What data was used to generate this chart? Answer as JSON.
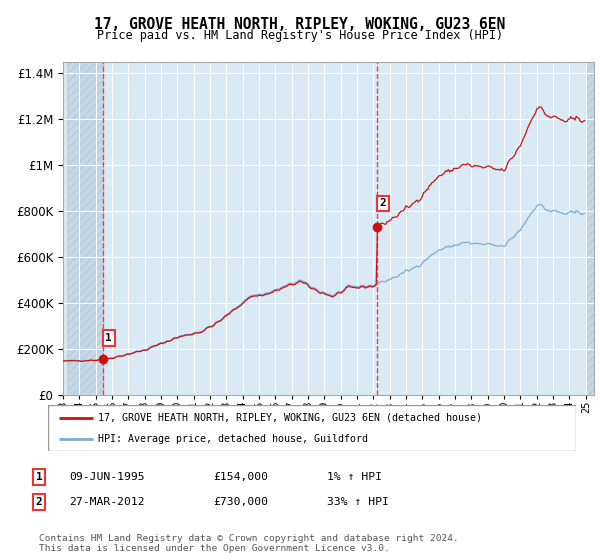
{
  "title": "17, GROVE HEATH NORTH, RIPLEY, WOKING, GU23 6EN",
  "subtitle": "Price paid vs. HM Land Registry's House Price Index (HPI)",
  "sale1_price": 154000,
  "sale1_label": "09-JUN-1995",
  "sale1_pct": "1%",
  "sale2_price": 730000,
  "sale2_label": "27-MAR-2012",
  "sale2_pct": "33%",
  "legend_line1": "17, GROVE HEATH NORTH, RIPLEY, WOKING, GU23 6EN (detached house)",
  "legend_line2": "HPI: Average price, detached house, Guildford",
  "footer": "Contains HM Land Registry data © Crown copyright and database right 2024.\nThis data is licensed under the Open Government Licence v3.0.",
  "hpi_color": "#7aadd4",
  "price_color": "#cc1111",
  "dashed_color": "#ee3333",
  "bg_color": "#daeaf5",
  "hatch_color": "#c5d8e8",
  "ylim_max": 1450000,
  "xlim_min": 1993.25,
  "xlim_max": 2025.5,
  "sale1_year": 1995.44,
  "sale2_year": 2012.23
}
